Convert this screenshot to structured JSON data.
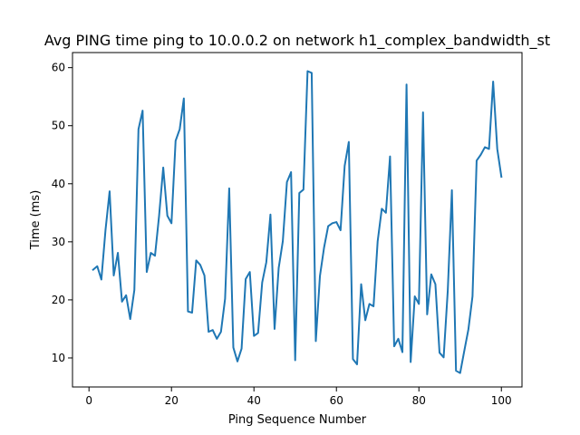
{
  "chart_data": {
    "type": "line",
    "title": "Avg PING time ping to 10.0.0.2 on network h1_complex_bandwidth_st",
    "xlabel": "Ping Sequence Number",
    "ylabel": "Time (ms)",
    "xlim": [
      -4,
      105
    ],
    "ylim": [
      5,
      62.6
    ],
    "xticks": [
      0,
      20,
      40,
      60,
      80,
      100
    ],
    "yticks": [
      10,
      20,
      30,
      40,
      50,
      60
    ],
    "grid": false,
    "line_color": "#1f77b4",
    "series": [
      {
        "x": [
          1,
          2,
          3,
          4,
          5,
          6,
          7,
          8,
          9,
          10,
          11,
          12,
          13,
          14,
          15,
          16,
          17,
          18,
          19,
          20,
          21,
          22,
          23,
          24,
          25,
          26,
          27,
          28,
          29,
          30,
          31,
          32,
          33,
          34,
          35,
          36,
          37,
          38,
          39,
          40,
          41,
          42,
          43,
          44,
          45,
          46,
          47,
          48,
          49,
          50,
          51,
          52,
          53,
          54,
          55,
          56,
          57,
          58,
          59,
          60,
          61,
          62,
          63,
          64,
          65,
          66,
          67,
          68,
          69,
          70,
          71,
          72,
          73,
          74,
          75,
          76,
          77,
          78,
          79,
          80,
          81,
          82,
          83,
          84,
          85,
          86,
          87,
          88,
          89,
          90,
          91,
          92,
          93,
          94,
          95,
          96,
          97,
          98,
          99,
          100
        ],
        "values": [
          25.2,
          25.8,
          23.5,
          32,
          38.7,
          24.2,
          28.1,
          19.7,
          20.8,
          16.7,
          21.7,
          49.4,
          52.6,
          24.8,
          28.1,
          27.6,
          34.5,
          42.8,
          34.5,
          33.2,
          47.4,
          49.4,
          54.7,
          18,
          17.8,
          26.8,
          26,
          24.2,
          14.5,
          14.8,
          13.3,
          14.5,
          20.2,
          39.2,
          11.8,
          9.4,
          11.6,
          23.6,
          24.8,
          13.8,
          14.3,
          23,
          26.5,
          34.7,
          15,
          25.5,
          30.1,
          40.3,
          42,
          9.6,
          38.4,
          39,
          59.4,
          59.1,
          12.9,
          24.1,
          29,
          32.7,
          33.2,
          33.4,
          32,
          43.1,
          47.2,
          9.8,
          8.9,
          22.7,
          16.5,
          19.3,
          18.9,
          30.1,
          35.7,
          35,
          44.7,
          12,
          13.3,
          11,
          57.1,
          9.3,
          20.6,
          19.3,
          52.3,
          17.5,
          24.4,
          22.7,
          10.9,
          10.1,
          21.6,
          38.9,
          7.8,
          7.4,
          11.2,
          14.9,
          20.6,
          44,
          45,
          46.3,
          46,
          57.6,
          46,
          41.2
        ]
      }
    ]
  }
}
